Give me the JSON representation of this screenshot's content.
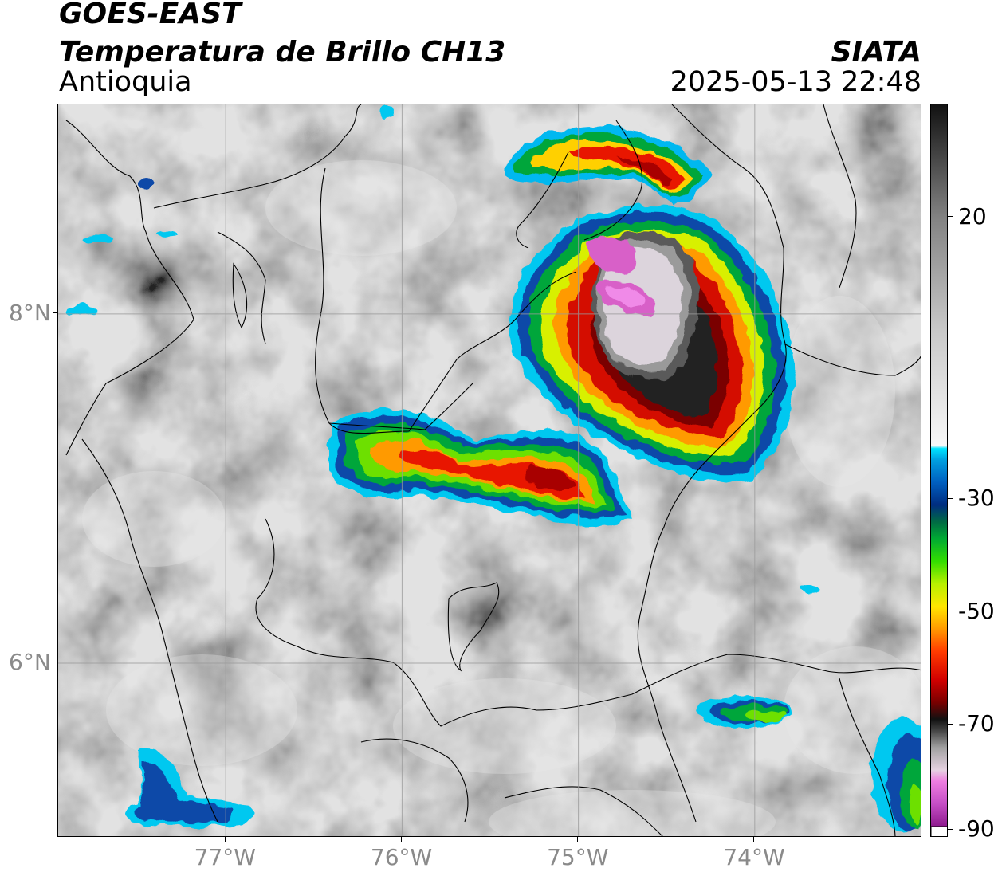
{
  "header": {
    "satellite": "GOES-EAST",
    "product": "Temperatura de Brillo CH13",
    "region": "Antioquia",
    "organization": "SIATA",
    "datetime": "2025-05-13 22:48"
  },
  "map": {
    "lon_range": [
      -77.95,
      -73.05
    ],
    "lat_range": [
      5.0,
      9.2
    ],
    "lon_ticks": [
      {
        "value": -77,
        "label": "77°W"
      },
      {
        "value": -76,
        "label": "76°W"
      },
      {
        "value": -75,
        "label": "75°W"
      },
      {
        "value": -74,
        "label": "74°W"
      }
    ],
    "lat_ticks": [
      {
        "value": 8,
        "label": "8°N"
      },
      {
        "value": 6,
        "label": "6°N"
      }
    ],
    "gridlines": true,
    "gridline_color": "#9a9a9a",
    "background_color": "#8e8e8e"
  },
  "colorbar": {
    "range": [
      -90,
      40
    ],
    "ticks": [
      {
        "value": 20,
        "label": "20"
      },
      {
        "value": -30,
        "label": "-30"
      },
      {
        "value": -50,
        "label": "-50"
      },
      {
        "value": -70,
        "label": "-70"
      },
      {
        "value": -90,
        "label": "-90"
      }
    ],
    "stops": [
      {
        "value": -90,
        "color": "#ffffff"
      },
      {
        "value": -88,
        "color": "#8e1a8e"
      },
      {
        "value": -84,
        "color": "#c54ec5"
      },
      {
        "value": -80,
        "color": "#ee7de0"
      },
      {
        "value": -78,
        "color": "#e6d2e1"
      },
      {
        "value": -74,
        "color": "#a0a0a0"
      },
      {
        "value": -71,
        "color": "#444444"
      },
      {
        "value": -69,
        "color": "#111111"
      },
      {
        "value": -66,
        "color": "#7a0000"
      },
      {
        "value": -62,
        "color": "#d10000"
      },
      {
        "value": -57,
        "color": "#ff3b00"
      },
      {
        "value": -53,
        "color": "#ff9900"
      },
      {
        "value": -49,
        "color": "#ffe600"
      },
      {
        "value": -45,
        "color": "#b8f000"
      },
      {
        "value": -41,
        "color": "#33dd00"
      },
      {
        "value": -37,
        "color": "#00aa33"
      },
      {
        "value": -34,
        "color": "#006a44"
      },
      {
        "value": -31,
        "color": "#002d80"
      },
      {
        "value": -27,
        "color": "#005fc0"
      },
      {
        "value": -23,
        "color": "#00a0e0"
      },
      {
        "value": -21,
        "color": "#00e5ff"
      },
      {
        "value": -20.5,
        "color": "#f8f8f8"
      },
      {
        "value": 0,
        "color": "#c8c8c8"
      },
      {
        "value": 20,
        "color": "#828282"
      },
      {
        "value": 40,
        "color": "#111111"
      }
    ]
  }
}
